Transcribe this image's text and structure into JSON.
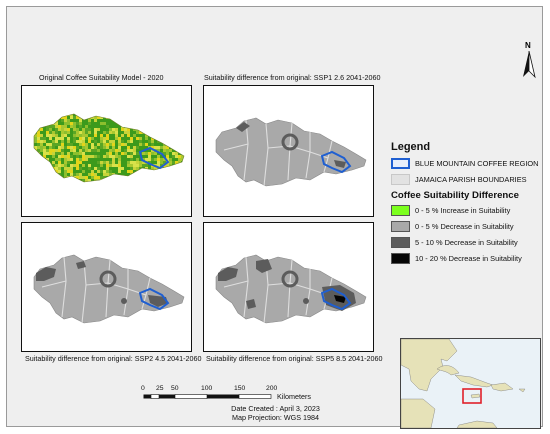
{
  "panels": [
    {
      "id": "original",
      "caption": "Original Coffee Suitability Model - 2020"
    },
    {
      "id": "ssp126",
      "caption": "Suitability difference from original: SSP1 2.6 2041-2060"
    },
    {
      "id": "ssp245",
      "caption": "Suitability difference from original: SSP2 4.5 2041-2060"
    },
    {
      "id": "ssp585",
      "caption": "Suitability difference from original: SSP5 8.5 2041-2060"
    }
  ],
  "legend": {
    "title": "Legend",
    "boundaries": [
      {
        "label": "BLUE MOUNTAIN COFFEE REGION",
        "swatch": "outline",
        "color": "#1f5fd1"
      },
      {
        "label": "JAMAICA PARISH BOUNDARIES",
        "swatch": "fill",
        "color": "#e2e2e2"
      }
    ],
    "diff_title": "Coffee Suitability Difference",
    "classes": [
      {
        "label": "0 - 5 % Increase in Suitability",
        "color": "#7cff1e"
      },
      {
        "label": "0 - 5 % Decrease in Suitability",
        "color": "#a9a9a9"
      },
      {
        "label": "5 - 10 % Decrease in Suitability",
        "color": "#5c5c5c"
      },
      {
        "label": "10 - 20 % Decrease in Suitability",
        "color": "#050505"
      }
    ]
  },
  "north": {
    "label": "N"
  },
  "scale": {
    "ticks": [
      "0",
      "25",
      "50",
      "100",
      "150",
      "200"
    ],
    "unit": "Kilometers"
  },
  "footer": {
    "date": "Date Created : April 3, 2023",
    "projection": "Map Projection: WGS 1984"
  },
  "colors": {
    "frame_bg": "#efefef",
    "land_grey": "#a9a9a9",
    "parish_line": "#dedede",
    "suitability_yellow": "#e3d51a",
    "suitability_green": "#3c9a1c",
    "region_outline": "#1f5fd1",
    "locator_highlight": "#e0202a"
  }
}
